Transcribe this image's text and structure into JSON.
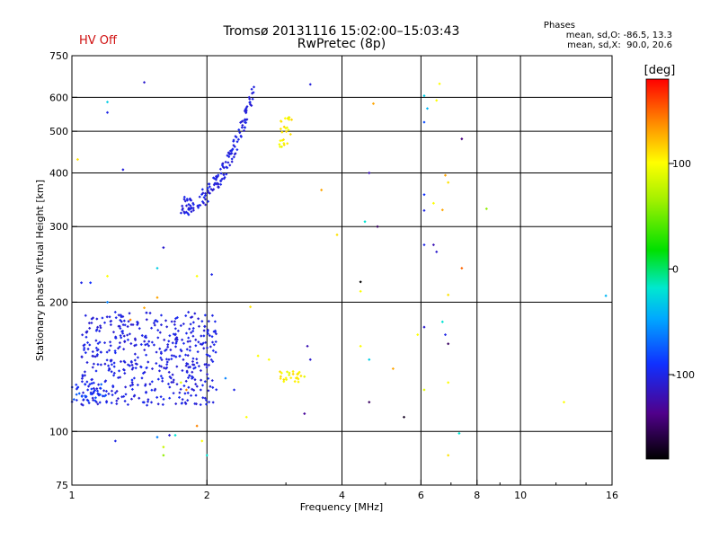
{
  "chart_data": {
    "type": "scatter",
    "title": "Tromsø 20131116 15:02:00–15:03:43",
    "subtitle": "RwPretec (8p)",
    "status_label": "HV Off",
    "stats": {
      "heading": "Phases",
      "line1": "mean, sd,O: -86.5, 13.3",
      "line2": "mean, sd,X:  90.0, 20.6"
    },
    "xlabel": "Frequency [MHz]",
    "ylabel": "Stationary phase Virtual Height [km]",
    "xscale": "log",
    "yscale": "log",
    "xlim": [
      1,
      16
    ],
    "ylim": [
      75,
      750
    ],
    "x_ticks": [
      1,
      2,
      4,
      6,
      8,
      10,
      16
    ],
    "x_tick_labels": [
      "1",
      "2",
      "4",
      "6",
      "8",
      "10",
      "16"
    ],
    "y_ticks": [
      75,
      100,
      200,
      300,
      400,
      500,
      600,
      750
    ],
    "y_tick_labels": [
      "75",
      "100",
      "200",
      "300",
      "400",
      "500",
      "600",
      "750"
    ],
    "grid": true,
    "colorbar": {
      "label": "[deg]",
      "range": [
        -180,
        180
      ],
      "ticks": [
        100,
        0,
        -100
      ],
      "tick_labels": [
        "100",
        "0",
        "-100"
      ]
    },
    "clusters": [
      {
        "name": "",
        "x_range": [
          1.05,
          2.1
        ],
        "y_range": [
          115,
          190
        ],
        "phase_range": [
          -110,
          -95
        ],
        "approx_points": 480
      },
      {
        "name": "",
        "x_range": [
          1.0,
          1.2
        ],
        "y_range": [
          117,
          130
        ],
        "phase_range": [
          -105,
          -70
        ],
        "approx_points": 40
      },
      {
        "name": "",
        "x_range": [
          1.75,
          2.55
        ],
        "y_range": [
          335,
          630
        ],
        "phase_range": [
          -110,
          -95
        ],
        "approx_points": 160
      },
      {
        "name": "",
        "x_range": [
          2.9,
          3.3
        ],
        "y_range": [
          130,
          138
        ],
        "phase_range": [
          90,
          115
        ],
        "approx_points": 25
      },
      {
        "name": "",
        "x_range": [
          2.9,
          3.1
        ],
        "y_range": [
          460,
          540
        ],
        "phase_range": [
          90,
          115
        ],
        "approx_points": 25
      }
    ],
    "points": [
      {
        "x": 1.45,
        "y": 650,
        "phase": -110
      },
      {
        "x": 1.2,
        "y": 553,
        "phase": -100
      },
      {
        "x": 1.2,
        "y": 585,
        "phase": -30
      },
      {
        "x": 1.3,
        "y": 407,
        "phase": -105
      },
      {
        "x": 1.6,
        "y": 268,
        "phase": -110
      },
      {
        "x": 1.55,
        "y": 240,
        "phase": -30
      },
      {
        "x": 1.05,
        "y": 222,
        "phase": -100
      },
      {
        "x": 1.1,
        "y": 222,
        "phase": -90
      },
      {
        "x": 1.2,
        "y": 230,
        "phase": 100
      },
      {
        "x": 1.9,
        "y": 230,
        "phase": 100
      },
      {
        "x": 2.05,
        "y": 232,
        "phase": -100
      },
      {
        "x": 3.4,
        "y": 643,
        "phase": -105
      },
      {
        "x": 3.6,
        "y": 365,
        "phase": 130
      },
      {
        "x": 3.9,
        "y": 287,
        "phase": 110
      },
      {
        "x": 4.4,
        "y": 223,
        "phase": -180
      },
      {
        "x": 4.4,
        "y": 212,
        "phase": 100
      },
      {
        "x": 4.6,
        "y": 400,
        "phase": -120
      },
      {
        "x": 4.7,
        "y": 580,
        "phase": 130
      },
      {
        "x": 4.5,
        "y": 308,
        "phase": -20
      },
      {
        "x": 4.8,
        "y": 300,
        "phase": -150
      },
      {
        "x": 6.1,
        "y": 605,
        "phase": -30
      },
      {
        "x": 6.2,
        "y": 565,
        "phase": -40
      },
      {
        "x": 6.5,
        "y": 590,
        "phase": 100
      },
      {
        "x": 6.6,
        "y": 645,
        "phase": 100
      },
      {
        "x": 6.1,
        "y": 525,
        "phase": -80
      },
      {
        "x": 6.1,
        "y": 356,
        "phase": -90
      },
      {
        "x": 6.1,
        "y": 327,
        "phase": -100
      },
      {
        "x": 6.4,
        "y": 340,
        "phase": 100
      },
      {
        "x": 6.8,
        "y": 395,
        "phase": 130
      },
      {
        "x": 6.9,
        "y": 380,
        "phase": 110
      },
      {
        "x": 6.7,
        "y": 328,
        "phase": 130
      },
      {
        "x": 6.1,
        "y": 272,
        "phase": -100
      },
      {
        "x": 6.4,
        "y": 272,
        "phase": -120
      },
      {
        "x": 6.5,
        "y": 262,
        "phase": -110
      },
      {
        "x": 7.4,
        "y": 480,
        "phase": -140
      },
      {
        "x": 7.4,
        "y": 240,
        "phase": 150
      },
      {
        "x": 8.4,
        "y": 330,
        "phase": 60
      },
      {
        "x": 6.9,
        "y": 208,
        "phase": 110
      },
      {
        "x": 6.7,
        "y": 180,
        "phase": -20
      },
      {
        "x": 6.1,
        "y": 175,
        "phase": -110
      },
      {
        "x": 5.9,
        "y": 168,
        "phase": 100
      },
      {
        "x": 6.8,
        "y": 168,
        "phase": -100
      },
      {
        "x": 6.9,
        "y": 160,
        "phase": -150
      },
      {
        "x": 4.4,
        "y": 158,
        "phase": 100
      },
      {
        "x": 4.6,
        "y": 147,
        "phase": -30
      },
      {
        "x": 5.2,
        "y": 140,
        "phase": 130
      },
      {
        "x": 6.1,
        "y": 125,
        "phase": 90
      },
      {
        "x": 6.9,
        "y": 130,
        "phase": 100
      },
      {
        "x": 4.6,
        "y": 117,
        "phase": -150
      },
      {
        "x": 5.5,
        "y": 108,
        "phase": -170
      },
      {
        "x": 3.35,
        "y": 158,
        "phase": -120
      },
      {
        "x": 3.4,
        "y": 147,
        "phase": -110
      },
      {
        "x": 3.3,
        "y": 110,
        "phase": -130
      },
      {
        "x": 2.75,
        "y": 147,
        "phase": 100
      },
      {
        "x": 2.6,
        "y": 150,
        "phase": 100
      },
      {
        "x": 2.5,
        "y": 195,
        "phase": 110
      },
      {
        "x": 2.45,
        "y": 108,
        "phase": 100
      },
      {
        "x": 2.3,
        "y": 125,
        "phase": -100
      },
      {
        "x": 2.2,
        "y": 133,
        "phase": -60
      },
      {
        "x": 1.25,
        "y": 95,
        "phase": -100
      },
      {
        "x": 1.55,
        "y": 97,
        "phase": -60
      },
      {
        "x": 1.65,
        "y": 98,
        "phase": -110
      },
      {
        "x": 1.9,
        "y": 103,
        "phase": 140
      },
      {
        "x": 1.95,
        "y": 95,
        "phase": 100
      },
      {
        "x": 1.6,
        "y": 88,
        "phase": 60
      },
      {
        "x": 1.6,
        "y": 92,
        "phase": 80
      },
      {
        "x": 1.7,
        "y": 98,
        "phase": -20
      },
      {
        "x": 2.0,
        "y": 88,
        "phase": -20
      },
      {
        "x": 7.3,
        "y": 99,
        "phase": -20
      },
      {
        "x": 6.9,
        "y": 88,
        "phase": 110
      },
      {
        "x": 12.5,
        "y": 117,
        "phase": 100
      },
      {
        "x": 15.5,
        "y": 207,
        "phase": -40
      },
      {
        "x": 1.35,
        "y": 182,
        "phase": 140
      },
      {
        "x": 1.45,
        "y": 194,
        "phase": 130
      },
      {
        "x": 1.55,
        "y": 205,
        "phase": 130
      },
      {
        "x": 1.8,
        "y": 125,
        "phase": 140
      },
      {
        "x": 1.75,
        "y": 130,
        "phase": 90
      },
      {
        "x": 1.2,
        "y": 200,
        "phase": -60
      },
      {
        "x": 1.03,
        "y": 430,
        "phase": 110
      }
    ]
  }
}
